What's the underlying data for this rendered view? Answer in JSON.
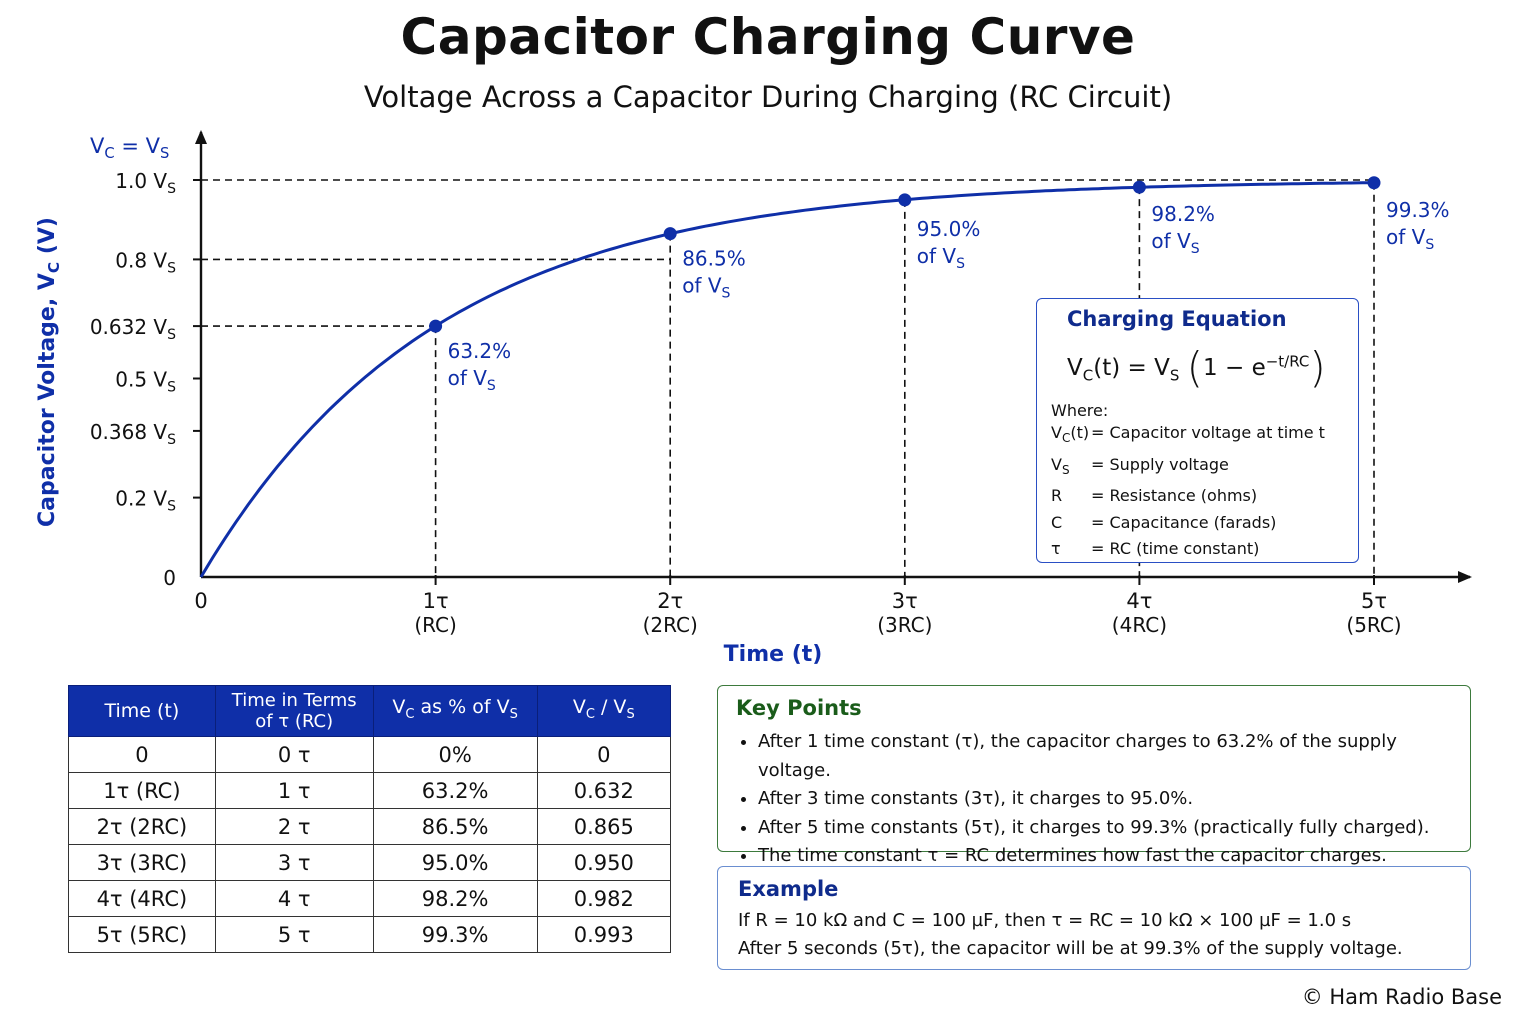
{
  "title": "Capacitor Charging Curve",
  "subtitle": "Voltage Across a Capacitor During Charging (RC Circuit)",
  "chart_data": {
    "type": "line",
    "ylabel": "Capacitor Voltage, V",
    "ylabel_sub": "C",
    "ylabel_unit": " (V)",
    "xlabel": "Time (t)",
    "y_top_label": {
      "main": "V",
      "sub": "C",
      "mid": " = V",
      "sub2": "S"
    },
    "xlim": [
      0,
      5.4
    ],
    "ylim": [
      0,
      1.0
    ],
    "x_ticks": [
      {
        "value": 0,
        "label": "0",
        "sub": ""
      },
      {
        "value": 1,
        "label": "1τ",
        "sub": "(RC)"
      },
      {
        "value": 2,
        "label": "2τ",
        "sub": "(2RC)"
      },
      {
        "value": 3,
        "label": "3τ",
        "sub": "(3RC)"
      },
      {
        "value": 4,
        "label": "4τ",
        "sub": "(4RC)"
      },
      {
        "value": 5,
        "label": "5τ",
        "sub": "(5RC)"
      }
    ],
    "y_ticks": [
      {
        "value": 0,
        "label": "0",
        "sub": ""
      },
      {
        "value": 0.2,
        "label": "0.2 V",
        "sub": "S"
      },
      {
        "value": 0.368,
        "label": "0.368 V",
        "sub": "S"
      },
      {
        "value": 0.5,
        "label": "0.5 V",
        "sub": "S"
      },
      {
        "value": 0.632,
        "label": "0.632 V",
        "sub": "S"
      },
      {
        "value": 0.8,
        "label": "0.8 V",
        "sub": "S"
      },
      {
        "value": 1.0,
        "label": "1.0 V",
        "sub": "S"
      }
    ],
    "points": [
      {
        "x": 1,
        "y": 0.632,
        "pct": "63.2%",
        "of": "of V",
        "sub": "S"
      },
      {
        "x": 2,
        "y": 0.865,
        "pct": "86.5%",
        "of": "of V",
        "sub": "S"
      },
      {
        "x": 3,
        "y": 0.95,
        "pct": "95.0%",
        "of": "of V",
        "sub": "S"
      },
      {
        "x": 4,
        "y": 0.982,
        "pct": "98.2%",
        "of": "of V",
        "sub": "S"
      },
      {
        "x": 5,
        "y": 0.993,
        "pct": "99.3%",
        "of": "of V",
        "sub": "S"
      }
    ],
    "h_guides": [
      {
        "y": 0.632,
        "x_end": 1
      },
      {
        "y": 0.8,
        "x_end": 2
      },
      {
        "y": 1.0,
        "x_end": 5
      }
    ],
    "curve_color": "#0f2fa8"
  },
  "equation": {
    "title": "Charging Equation",
    "lhs": "V",
    "lhs_sub": "C",
    "lhs_rest": "(t) = V",
    "rhs_sub": "S",
    "open": "(",
    "inner": "1 − e",
    "exp": "−t/RC",
    "close": ")",
    "where": "Where:",
    "defs": [
      {
        "sym": "V",
        "sym_sub": "C",
        "sym_rest": "(t)",
        "text": "= Capacitor voltage at time t"
      },
      {
        "sym": "V",
        "sym_sub": "S",
        "sym_rest": "",
        "text": "= Supply voltage"
      },
      {
        "sym": "R",
        "sym_sub": "",
        "sym_rest": "",
        "text": "= Resistance (ohms)"
      },
      {
        "sym": "C",
        "sym_sub": "",
        "sym_rest": "",
        "text": "= Capacitance (farads)"
      },
      {
        "sym": "τ",
        "sym_sub": "",
        "sym_rest": "",
        "text": "= RC (time constant)"
      }
    ]
  },
  "table": {
    "headers": [
      {
        "text": "Time (t)",
        "sub": "",
        "rest": "",
        "line2": ""
      },
      {
        "text": "Time in Terms",
        "sub": "",
        "rest": "",
        "line2": "of τ (RC)"
      },
      {
        "text": "V",
        "sub": "C",
        "rest": " as % of V",
        "sub2": "S",
        "line2": ""
      },
      {
        "text": "V",
        "sub": "C",
        "rest": " / V",
        "sub2": "S",
        "line2": ""
      }
    ],
    "rows": [
      [
        "0",
        "0 τ",
        "0%",
        "0"
      ],
      [
        "1τ (RC)",
        "1 τ",
        "63.2%",
        "0.632"
      ],
      [
        "2τ (2RC)",
        "2 τ",
        "86.5%",
        "0.865"
      ],
      [
        "3τ (3RC)",
        "3 τ",
        "95.0%",
        "0.950"
      ],
      [
        "4τ (4RC)",
        "4 τ",
        "98.2%",
        "0.982"
      ],
      [
        "5τ (5RC)",
        "5 τ",
        "99.3%",
        "0.993"
      ]
    ]
  },
  "key_points": {
    "title": "Key Points",
    "items": [
      "After 1 time constant (τ), the capacitor charges to 63.2% of the supply voltage.",
      "After 3 time constants (3τ), it charges to 95.0%.",
      "After 5 time constants (5τ), it charges to 99.3% (practically fully charged).",
      "The time constant τ = RC determines how fast the capacitor charges."
    ]
  },
  "example": {
    "title": "Example",
    "lines": [
      "If R = 10 kΩ and C = 100 µF, then τ = RC = 10 kΩ × 100 µF = 1.0 s",
      "After 5 seconds (5τ), the capacitor will be at 99.3% of the supply voltage."
    ]
  },
  "copyright": "© Ham Radio Base"
}
